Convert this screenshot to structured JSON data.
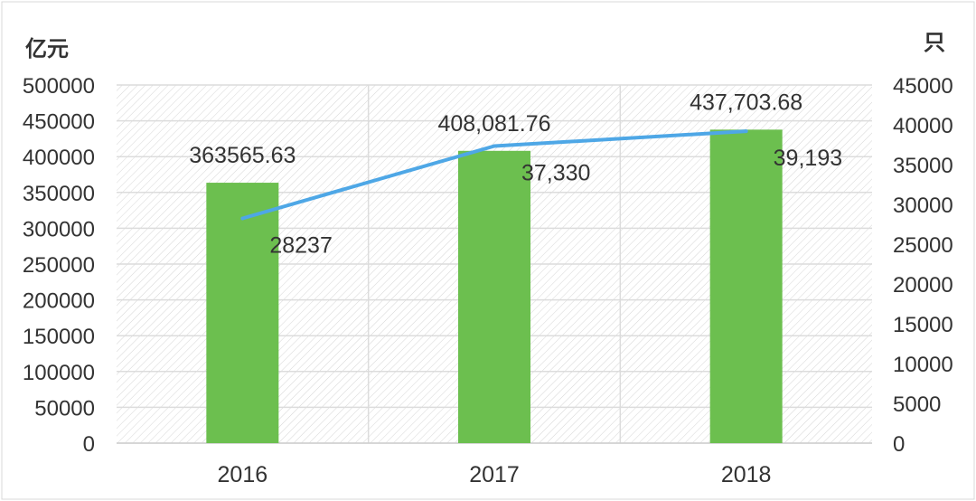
{
  "chart_data": {
    "type": "bar+line",
    "categories": [
      "2016",
      "2017",
      "2018"
    ],
    "series": [
      {
        "type": "bar",
        "axis": "left",
        "values": [
          363565.63,
          408081.76,
          437703.68
        ],
        "labels": [
          "363565.63",
          "408,081.76",
          "437,703.68"
        ],
        "color": "#6cbf4f"
      },
      {
        "type": "line",
        "axis": "right",
        "values": [
          28237,
          37330,
          39193
        ],
        "labels": [
          "28237",
          "37,330",
          "39,193"
        ],
        "color": "#4ea7e6"
      }
    ],
    "left_axis": {
      "unit": "亿元",
      "ylim": [
        0,
        500000
      ],
      "ticks": [
        "0",
        "50000",
        "100000",
        "150000",
        "200000",
        "250000",
        "300000",
        "350000",
        "400000",
        "450000",
        "500000"
      ]
    },
    "right_axis": {
      "unit": "只",
      "ylim": [
        0,
        45000
      ],
      "ticks": [
        "0",
        "5000",
        "10000",
        "15000",
        "20000",
        "25000",
        "30000",
        "35000",
        "40000",
        "45000"
      ]
    },
    "grid": true,
    "background": "diagonal hatch"
  }
}
